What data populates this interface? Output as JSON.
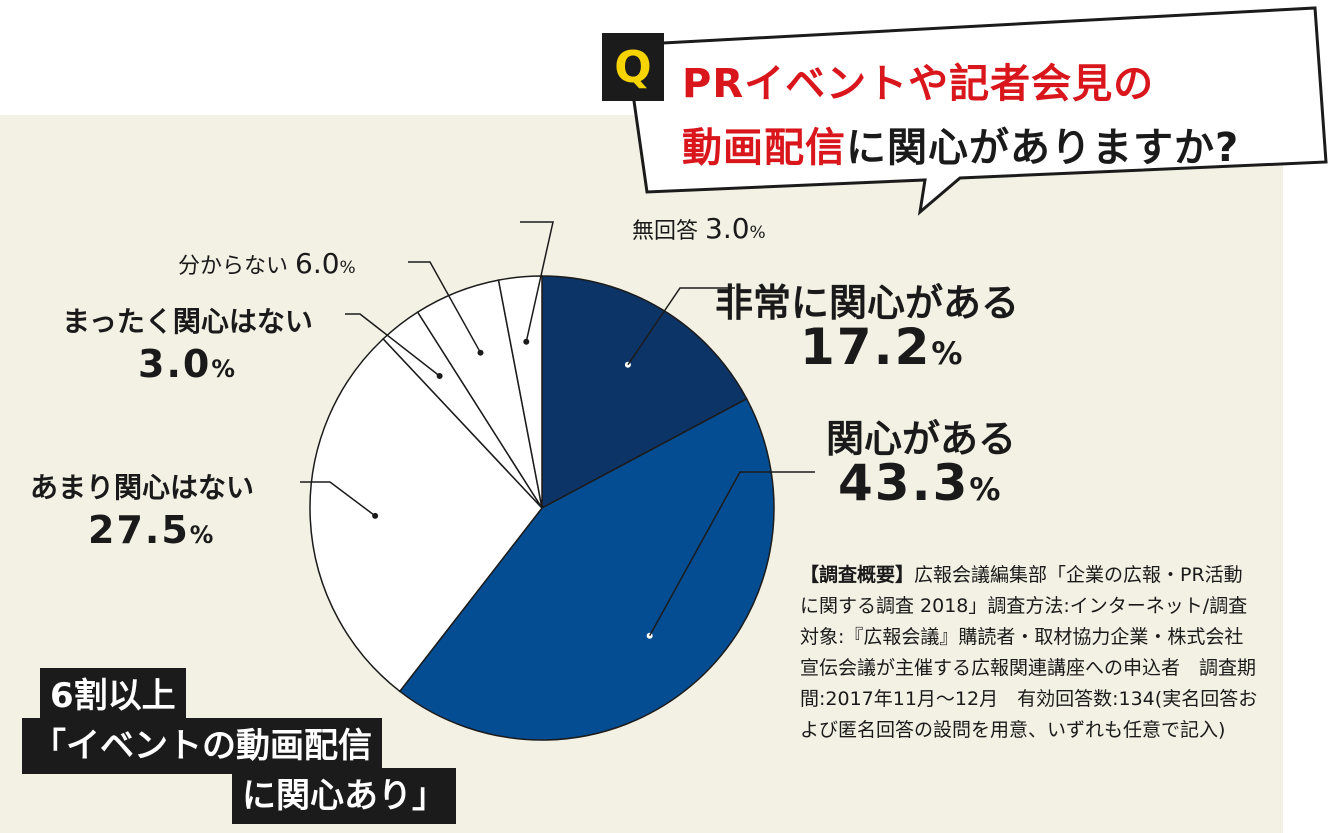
{
  "question": {
    "badge": "Q",
    "line1_red": "PRイベントや記者会見の",
    "line2_red": "動画配信",
    "line2_black": "に関心がありますか?"
  },
  "chart_data": {
    "type": "pie",
    "title": "PRイベントや記者会見の動画配信に関心がありますか?",
    "slices": [
      {
        "label": "非常に関心がある",
        "value": 17.2,
        "display": "17.2",
        "color": "#0d3466"
      },
      {
        "label": "関心がある",
        "value": 43.3,
        "display": "43.3",
        "color": "#054d92"
      },
      {
        "label": "あまり関心はない",
        "value": 27.5,
        "display": "27.5",
        "color": "#ffffff"
      },
      {
        "label": "まったく関心はない",
        "value": 3.0,
        "display": "3.0",
        "color": "#ffffff"
      },
      {
        "label": "分からない",
        "value": 6.0,
        "display": "6.0",
        "color": "#ffffff"
      },
      {
        "label": "無回答",
        "value": 3.0,
        "display": "3.0",
        "color": "#ffffff"
      }
    ],
    "unit": "%"
  },
  "survey_note": {
    "heading": "【調査概要】",
    "text": "広報会議編集部「企業の広報・PR活動に関する調査 2018」調査方法:インターネット/調査対象:『広報会議』購読者・取材協力企業・株式会社宣伝会議が主催する広報関連講座への申込者　調査期間:2017年11月〜12月　有効回答数:134(実名回答および匿名回答の設問を用意、いずれも任意で記入)"
  },
  "callout": {
    "line1": "6割以上",
    "line2": "「イベントの動画配信",
    "line3": "に関心あり」"
  },
  "colors": {
    "panel_bg": "#f3f1e4",
    "accent_red": "#d9161c",
    "badge_yellow": "#f5d400"
  }
}
